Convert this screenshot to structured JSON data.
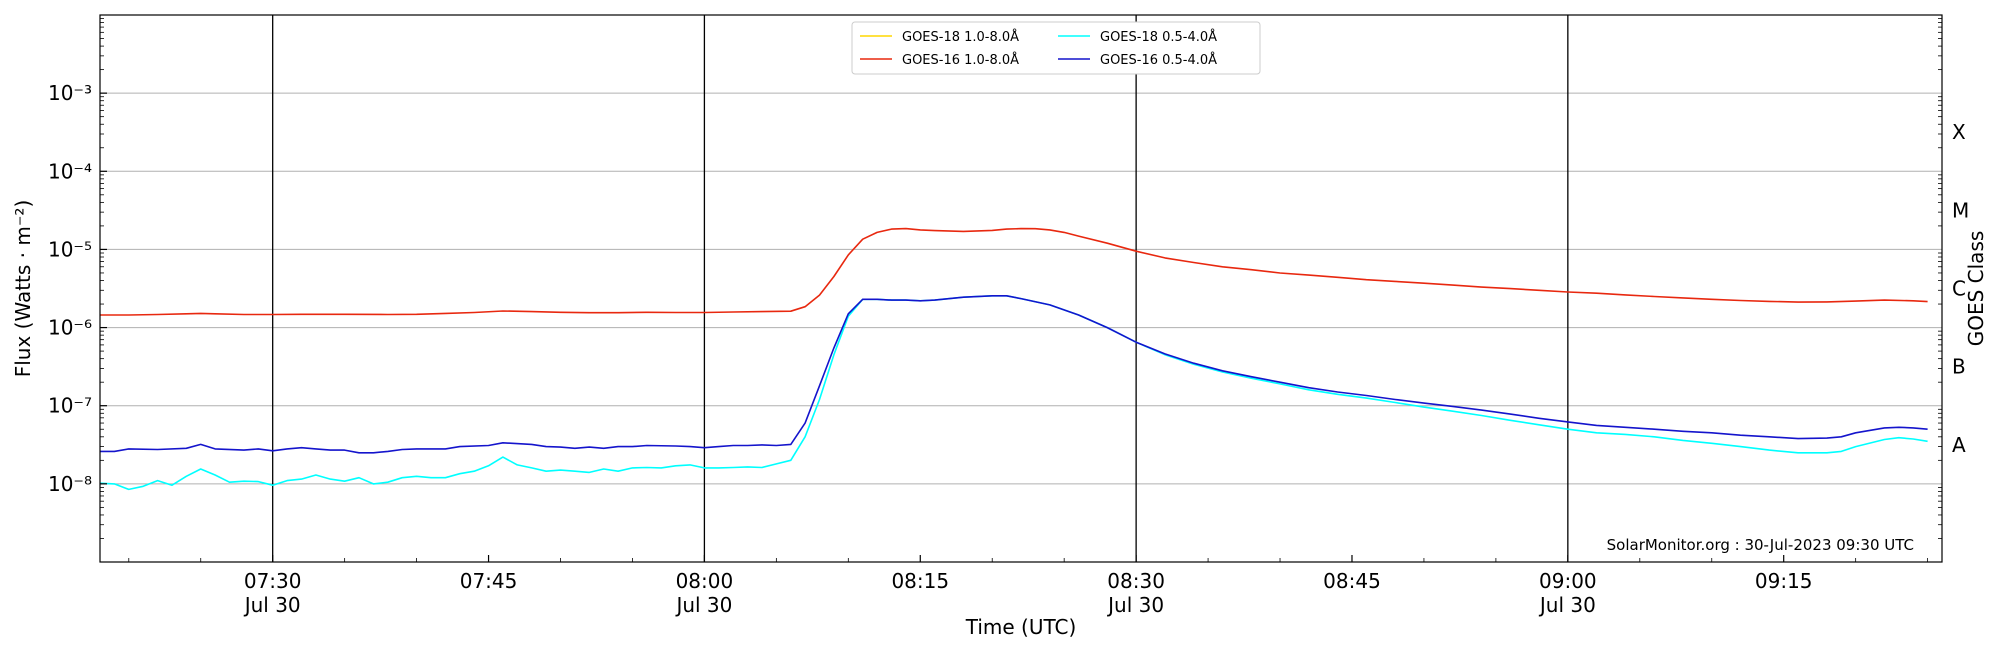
{
  "chart_data": {
    "type": "line",
    "xlabel": "Time (UTC)",
    "ylabel": "Flux (Watts · m⁻²)",
    "right_label": "GOES Class",
    "y_scale": "log",
    "ylim": [
      1e-09,
      0.01
    ],
    "xlim": [
      "2023-07-30 07:18",
      "2023-07-30 09:26"
    ],
    "grid": "horizontal",
    "legend_position": "top-center",
    "annotation": "SolarMonitor.org : 30-Jul-2023 09:30 UTC",
    "y_ticks": [
      {
        "value": 1e-08,
        "label": "10⁻⁸"
      },
      {
        "value": 1e-07,
        "label": "10⁻⁷"
      },
      {
        "value": 1e-06,
        "label": "10⁻⁶"
      },
      {
        "value": 1e-05,
        "label": "10⁻⁵"
      },
      {
        "value": 0.0001,
        "label": "10⁻⁴"
      },
      {
        "value": 0.001,
        "label": "10⁻³"
      }
    ],
    "x_ticks": [
      {
        "time": "07:30",
        "label": "07:30",
        "sublabel": "Jul 30",
        "vline": true
      },
      {
        "time": "07:45",
        "label": "07:45",
        "sublabel": "",
        "vline": false
      },
      {
        "time": "08:00",
        "label": "08:00",
        "sublabel": "Jul 30",
        "vline": true
      },
      {
        "time": "08:15",
        "label": "08:15",
        "sublabel": "",
        "vline": false
      },
      {
        "time": "08:30",
        "label": "08:30",
        "sublabel": "Jul 30",
        "vline": true
      },
      {
        "time": "08:45",
        "label": "08:45",
        "sublabel": "",
        "vline": false
      },
      {
        "time": "09:00",
        "label": "09:00",
        "sublabel": "Jul 30",
        "vline": true
      },
      {
        "time": "09:15",
        "label": "09:15",
        "sublabel": "",
        "vline": false
      }
    ],
    "goes_classes": [
      {
        "label": "A",
        "value": 1e-08
      },
      {
        "label": "B",
        "value": 1e-07
      },
      {
        "label": "C",
        "value": 1e-06
      },
      {
        "label": "M",
        "value": 1e-05
      },
      {
        "label": "X",
        "value": 0.0001
      }
    ],
    "series": [
      {
        "name": "GOES-18 1.0-8.0Å",
        "color": "#ffd700",
        "points": []
      },
      {
        "name": "GOES-16 1.0-8.0Å",
        "color": "#e8280f",
        "points": [
          [
            "07:18",
            1.45e-06
          ],
          [
            "07:20",
            1.45e-06
          ],
          [
            "07:22",
            1.47e-06
          ],
          [
            "07:24",
            1.5e-06
          ],
          [
            "07:25",
            1.52e-06
          ],
          [
            "07:26",
            1.5e-06
          ],
          [
            "07:28",
            1.47e-06
          ],
          [
            "07:30",
            1.47e-06
          ],
          [
            "07:32",
            1.48e-06
          ],
          [
            "07:35",
            1.48e-06
          ],
          [
            "07:38",
            1.47e-06
          ],
          [
            "07:40",
            1.48e-06
          ],
          [
            "07:42",
            1.52e-06
          ],
          [
            "07:44",
            1.56e-06
          ],
          [
            "07:46",
            1.63e-06
          ],
          [
            "07:48",
            1.6e-06
          ],
          [
            "07:50",
            1.57e-06
          ],
          [
            "07:52",
            1.55e-06
          ],
          [
            "07:54",
            1.55e-06
          ],
          [
            "07:56",
            1.57e-06
          ],
          [
            "07:58",
            1.56e-06
          ],
          [
            "08:00",
            1.56e-06
          ],
          [
            "08:02",
            1.58e-06
          ],
          [
            "08:04",
            1.6e-06
          ],
          [
            "08:06",
            1.62e-06
          ],
          [
            "08:07",
            1.85e-06
          ],
          [
            "08:08",
            2.6e-06
          ],
          [
            "08:09",
            4.5e-06
          ],
          [
            "08:10",
            8.5e-06
          ],
          [
            "08:11",
            1.35e-05
          ],
          [
            "08:12",
            1.65e-05
          ],
          [
            "08:13",
            1.82e-05
          ],
          [
            "08:14",
            1.85e-05
          ],
          [
            "08:15",
            1.78e-05
          ],
          [
            "08:16",
            1.74e-05
          ],
          [
            "08:18",
            1.7e-05
          ],
          [
            "08:20",
            1.75e-05
          ],
          [
            "08:21",
            1.82e-05
          ],
          [
            "08:22",
            1.85e-05
          ],
          [
            "08:23",
            1.84e-05
          ],
          [
            "08:24",
            1.78e-05
          ],
          [
            "08:25",
            1.65e-05
          ],
          [
            "08:26",
            1.48e-05
          ],
          [
            "08:28",
            1.2e-05
          ],
          [
            "08:30",
            9.5e-06
          ],
          [
            "08:32",
            7.8e-06
          ],
          [
            "08:34",
            6.8e-06
          ],
          [
            "08:36",
            6e-06
          ],
          [
            "08:38",
            5.5e-06
          ],
          [
            "08:40",
            5e-06
          ],
          [
            "08:42",
            4.7e-06
          ],
          [
            "08:44",
            4.4e-06
          ],
          [
            "08:46",
            4.1e-06
          ],
          [
            "08:48",
            3.9e-06
          ],
          [
            "08:50",
            3.7e-06
          ],
          [
            "08:52",
            3.5e-06
          ],
          [
            "08:54",
            3.3e-06
          ],
          [
            "08:56",
            3.15e-06
          ],
          [
            "08:58",
            3e-06
          ],
          [
            "09:00",
            2.85e-06
          ],
          [
            "09:02",
            2.75e-06
          ],
          [
            "09:04",
            2.62e-06
          ],
          [
            "09:06",
            2.5e-06
          ],
          [
            "09:08",
            2.4e-06
          ],
          [
            "09:10",
            2.3e-06
          ],
          [
            "09:12",
            2.22e-06
          ],
          [
            "09:14",
            2.16e-06
          ],
          [
            "09:16",
            2.12e-06
          ],
          [
            "09:18",
            2.13e-06
          ],
          [
            "09:20",
            2.18e-06
          ],
          [
            "09:22",
            2.25e-06
          ],
          [
            "09:24",
            2.2e-06
          ],
          [
            "09:25",
            2.15e-06
          ]
        ]
      },
      {
        "name": "GOES-18 0.5-4.0Å",
        "color": "#00ffff",
        "points": [
          [
            "07:18",
            1.02e-08
          ],
          [
            "07:19",
            1e-08
          ],
          [
            "07:20",
            8.5e-09
          ],
          [
            "07:21",
            9.3e-09
          ],
          [
            "07:22",
            1.1e-08
          ],
          [
            "07:23",
            9.6e-09
          ],
          [
            "07:24",
            1.25e-08
          ],
          [
            "07:25",
            1.55e-08
          ],
          [
            "07:26",
            1.3e-08
          ],
          [
            "07:27",
            1.05e-08
          ],
          [
            "07:28",
            1.08e-08
          ],
          [
            "07:29",
            1.07e-08
          ],
          [
            "07:30",
            9.6e-09
          ],
          [
            "07:31",
            1.1e-08
          ],
          [
            "07:32",
            1.15e-08
          ],
          [
            "07:33",
            1.3e-08
          ],
          [
            "07:34",
            1.15e-08
          ],
          [
            "07:35",
            1.08e-08
          ],
          [
            "07:36",
            1.2e-08
          ],
          [
            "07:37",
            1e-08
          ],
          [
            "07:38",
            1.05e-08
          ],
          [
            "07:39",
            1.2e-08
          ],
          [
            "07:40",
            1.25e-08
          ],
          [
            "07:41",
            1.2e-08
          ],
          [
            "07:42",
            1.2e-08
          ],
          [
            "07:43",
            1.35e-08
          ],
          [
            "07:44",
            1.45e-08
          ],
          [
            "07:45",
            1.7e-08
          ],
          [
            "07:46",
            2.2e-08
          ],
          [
            "07:47",
            1.75e-08
          ],
          [
            "07:48",
            1.6e-08
          ],
          [
            "07:49",
            1.45e-08
          ],
          [
            "07:50",
            1.5e-08
          ],
          [
            "07:51",
            1.45e-08
          ],
          [
            "07:52",
            1.4e-08
          ],
          [
            "07:53",
            1.55e-08
          ],
          [
            "07:54",
            1.45e-08
          ],
          [
            "07:55",
            1.6e-08
          ],
          [
            "07:56",
            1.62e-08
          ],
          [
            "07:57",
            1.6e-08
          ],
          [
            "07:58",
            1.7e-08
          ],
          [
            "07:59",
            1.75e-08
          ],
          [
            "08:00",
            1.6e-08
          ],
          [
            "08:01",
            1.6e-08
          ],
          [
            "08:02",
            1.62e-08
          ],
          [
            "08:03",
            1.65e-08
          ],
          [
            "08:04",
            1.62e-08
          ],
          [
            "08:05",
            1.8e-08
          ],
          [
            "08:06",
            2e-08
          ],
          [
            "08:07",
            4e-08
          ],
          [
            "08:08",
            1.2e-07
          ],
          [
            "08:09",
            4.5e-07
          ],
          [
            "08:10",
            1.4e-06
          ],
          [
            "08:11",
            2.3e-06
          ],
          [
            "08:12",
            2.3e-06
          ],
          [
            "08:13",
            2.25e-06
          ],
          [
            "08:14",
            2.25e-06
          ],
          [
            "08:15",
            2.2e-06
          ],
          [
            "08:16",
            2.25e-06
          ],
          [
            "08:18",
            2.45e-06
          ],
          [
            "08:20",
            2.55e-06
          ],
          [
            "08:21",
            2.55e-06
          ],
          [
            "08:22",
            2.35e-06
          ],
          [
            "08:24",
            1.95e-06
          ],
          [
            "08:26",
            1.45e-06
          ],
          [
            "08:28",
            1e-06
          ],
          [
            "08:30",
            6.5e-07
          ],
          [
            "08:32",
            4.5e-07
          ],
          [
            "08:34",
            3.4e-07
          ],
          [
            "08:36",
            2.7e-07
          ],
          [
            "08:38",
            2.25e-07
          ],
          [
            "08:40",
            1.9e-07
          ],
          [
            "08:42",
            1.6e-07
          ],
          [
            "08:44",
            1.4e-07
          ],
          [
            "08:46",
            1.25e-07
          ],
          [
            "08:48",
            1.1e-07
          ],
          [
            "08:50",
            9.6e-08
          ],
          [
            "08:52",
            8.5e-08
          ],
          [
            "08:54",
            7.5e-08
          ],
          [
            "08:56",
            6.5e-08
          ],
          [
            "08:58",
            5.7e-08
          ],
          [
            "09:00",
            5e-08
          ],
          [
            "09:02",
            4.5e-08
          ],
          [
            "09:04",
            4.3e-08
          ],
          [
            "09:06",
            4e-08
          ],
          [
            "09:08",
            3.6e-08
          ],
          [
            "09:10",
            3.3e-08
          ],
          [
            "09:12",
            3e-08
          ],
          [
            "09:14",
            2.7e-08
          ],
          [
            "09:16",
            2.5e-08
          ],
          [
            "09:18",
            2.5e-08
          ],
          [
            "09:19",
            2.6e-08
          ],
          [
            "09:20",
            3e-08
          ],
          [
            "09:22",
            3.7e-08
          ],
          [
            "09:23",
            3.9e-08
          ],
          [
            "09:24",
            3.75e-08
          ],
          [
            "09:25",
            3.5e-08
          ]
        ]
      },
      {
        "name": "GOES-16 0.5-4.0Å",
        "color": "#1414cc",
        "points": [
          [
            "07:18",
            2.6e-08
          ],
          [
            "07:19",
            2.6e-08
          ],
          [
            "07:20",
            2.8e-08
          ],
          [
            "07:22",
            2.75e-08
          ],
          [
            "07:24",
            2.85e-08
          ],
          [
            "07:25",
            3.2e-08
          ],
          [
            "07:26",
            2.8e-08
          ],
          [
            "07:28",
            2.7e-08
          ],
          [
            "07:29",
            2.8e-08
          ],
          [
            "07:30",
            2.65e-08
          ],
          [
            "07:31",
            2.8e-08
          ],
          [
            "07:32",
            2.9e-08
          ],
          [
            "07:33",
            2.8e-08
          ],
          [
            "07:34",
            2.7e-08
          ],
          [
            "07:35",
            2.7e-08
          ],
          [
            "07:36",
            2.5e-08
          ],
          [
            "07:37",
            2.5e-08
          ],
          [
            "07:38",
            2.6e-08
          ],
          [
            "07:39",
            2.75e-08
          ],
          [
            "07:40",
            2.8e-08
          ],
          [
            "07:42",
            2.8e-08
          ],
          [
            "07:43",
            3e-08
          ],
          [
            "07:45",
            3.1e-08
          ],
          [
            "07:46",
            3.35e-08
          ],
          [
            "07:48",
            3.2e-08
          ],
          [
            "07:49",
            3e-08
          ],
          [
            "07:50",
            2.95e-08
          ],
          [
            "07:51",
            2.85e-08
          ],
          [
            "07:52",
            2.95e-08
          ],
          [
            "07:53",
            2.85e-08
          ],
          [
            "07:54",
            3e-08
          ],
          [
            "07:55",
            3e-08
          ],
          [
            "07:56",
            3.1e-08
          ],
          [
            "07:58",
            3.05e-08
          ],
          [
            "07:59",
            3e-08
          ],
          [
            "08:00",
            2.9e-08
          ],
          [
            "08:01",
            3e-08
          ],
          [
            "08:02",
            3.1e-08
          ],
          [
            "08:03",
            3.1e-08
          ],
          [
            "08:04",
            3.15e-08
          ],
          [
            "08:05",
            3.1e-08
          ],
          [
            "08:06",
            3.2e-08
          ],
          [
            "08:07",
            6e-08
          ],
          [
            "08:08",
            1.8e-07
          ],
          [
            "08:09",
            5.5e-07
          ],
          [
            "08:10",
            1.5e-06
          ],
          [
            "08:11",
            2.3e-06
          ],
          [
            "08:12",
            2.3e-06
          ],
          [
            "08:13",
            2.25e-06
          ],
          [
            "08:14",
            2.25e-06
          ],
          [
            "08:15",
            2.2e-06
          ],
          [
            "08:16",
            2.25e-06
          ],
          [
            "08:18",
            2.45e-06
          ],
          [
            "08:20",
            2.55e-06
          ],
          [
            "08:21",
            2.55e-06
          ],
          [
            "08:22",
            2.35e-06
          ],
          [
            "08:24",
            1.95e-06
          ],
          [
            "08:26",
            1.45e-06
          ],
          [
            "08:28",
            1e-06
          ],
          [
            "08:30",
            6.5e-07
          ],
          [
            "08:32",
            4.6e-07
          ],
          [
            "08:34",
            3.5e-07
          ],
          [
            "08:36",
            2.8e-07
          ],
          [
            "08:38",
            2.35e-07
          ],
          [
            "08:40",
            2e-07
          ],
          [
            "08:42",
            1.7e-07
          ],
          [
            "08:44",
            1.5e-07
          ],
          [
            "08:46",
            1.35e-07
          ],
          [
            "08:48",
            1.2e-07
          ],
          [
            "08:50",
            1.08e-07
          ],
          [
            "08:52",
            9.8e-08
          ],
          [
            "08:54",
            8.8e-08
          ],
          [
            "08:56",
            7.8e-08
          ],
          [
            "08:58",
            6.9e-08
          ],
          [
            "09:00",
            6.2e-08
          ],
          [
            "09:02",
            5.6e-08
          ],
          [
            "09:04",
            5.3e-08
          ],
          [
            "09:06",
            5e-08
          ],
          [
            "09:08",
            4.7e-08
          ],
          [
            "09:10",
            4.5e-08
          ],
          [
            "09:12",
            4.2e-08
          ],
          [
            "09:14",
            4e-08
          ],
          [
            "09:16",
            3.8e-08
          ],
          [
            "09:18",
            3.85e-08
          ],
          [
            "09:19",
            4e-08
          ],
          [
            "09:20",
            4.5e-08
          ],
          [
            "09:22",
            5.2e-08
          ],
          [
            "09:23",
            5.3e-08
          ],
          [
            "09:24",
            5.2e-08
          ],
          [
            "09:25",
            5e-08
          ]
        ]
      }
    ]
  }
}
